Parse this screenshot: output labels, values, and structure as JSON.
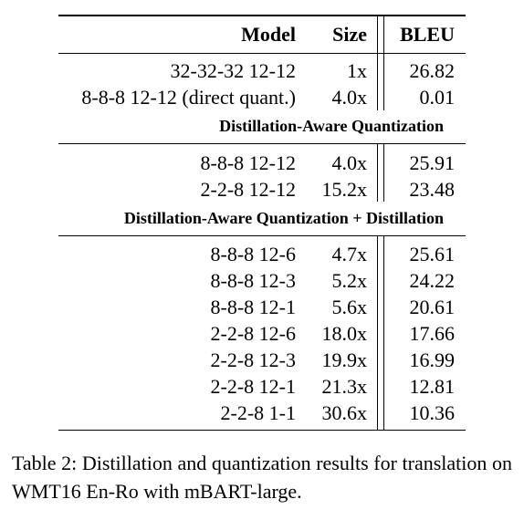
{
  "header": {
    "model": "Model",
    "size": "Size",
    "bleu": "BLEU"
  },
  "group1": [
    {
      "model": "32-32-32 12-12",
      "size": "1x",
      "bleu": "26.82"
    },
    {
      "model": "8-8-8 12-12 (direct quant.)",
      "size": "4.0x",
      "bleu": "0.01"
    }
  ],
  "section1": "Distillation-Aware Quantization",
  "group2": [
    {
      "model": "8-8-8 12-12",
      "size": "4.0x",
      "bleu": "25.91"
    },
    {
      "model": "2-2-8 12-12",
      "size": "15.2x",
      "bleu": "23.48"
    }
  ],
  "section2": "Distillation-Aware Quantization + Distillation",
  "group3": [
    {
      "model": "8-8-8 12-6",
      "size": "4.7x",
      "bleu": "25.61"
    },
    {
      "model": "8-8-8 12-3",
      "size": "5.2x",
      "bleu": "24.22"
    },
    {
      "model": "8-8-8 12-1",
      "size": "5.6x",
      "bleu": "20.61"
    },
    {
      "model": "2-2-8 12-6",
      "size": "18.0x",
      "bleu": "17.66"
    },
    {
      "model": "2-2-8 12-3",
      "size": "19.9x",
      "bleu": "16.99"
    },
    {
      "model": "2-2-8 12-1",
      "size": "21.3x",
      "bleu": "12.81"
    },
    {
      "model": "2-2-8 1-1",
      "size": "30.6x",
      "bleu": "10.36"
    }
  ],
  "caption": "Table 2: Distillation and quantization results for translation on WMT16 En-Ro with mBART-large."
}
